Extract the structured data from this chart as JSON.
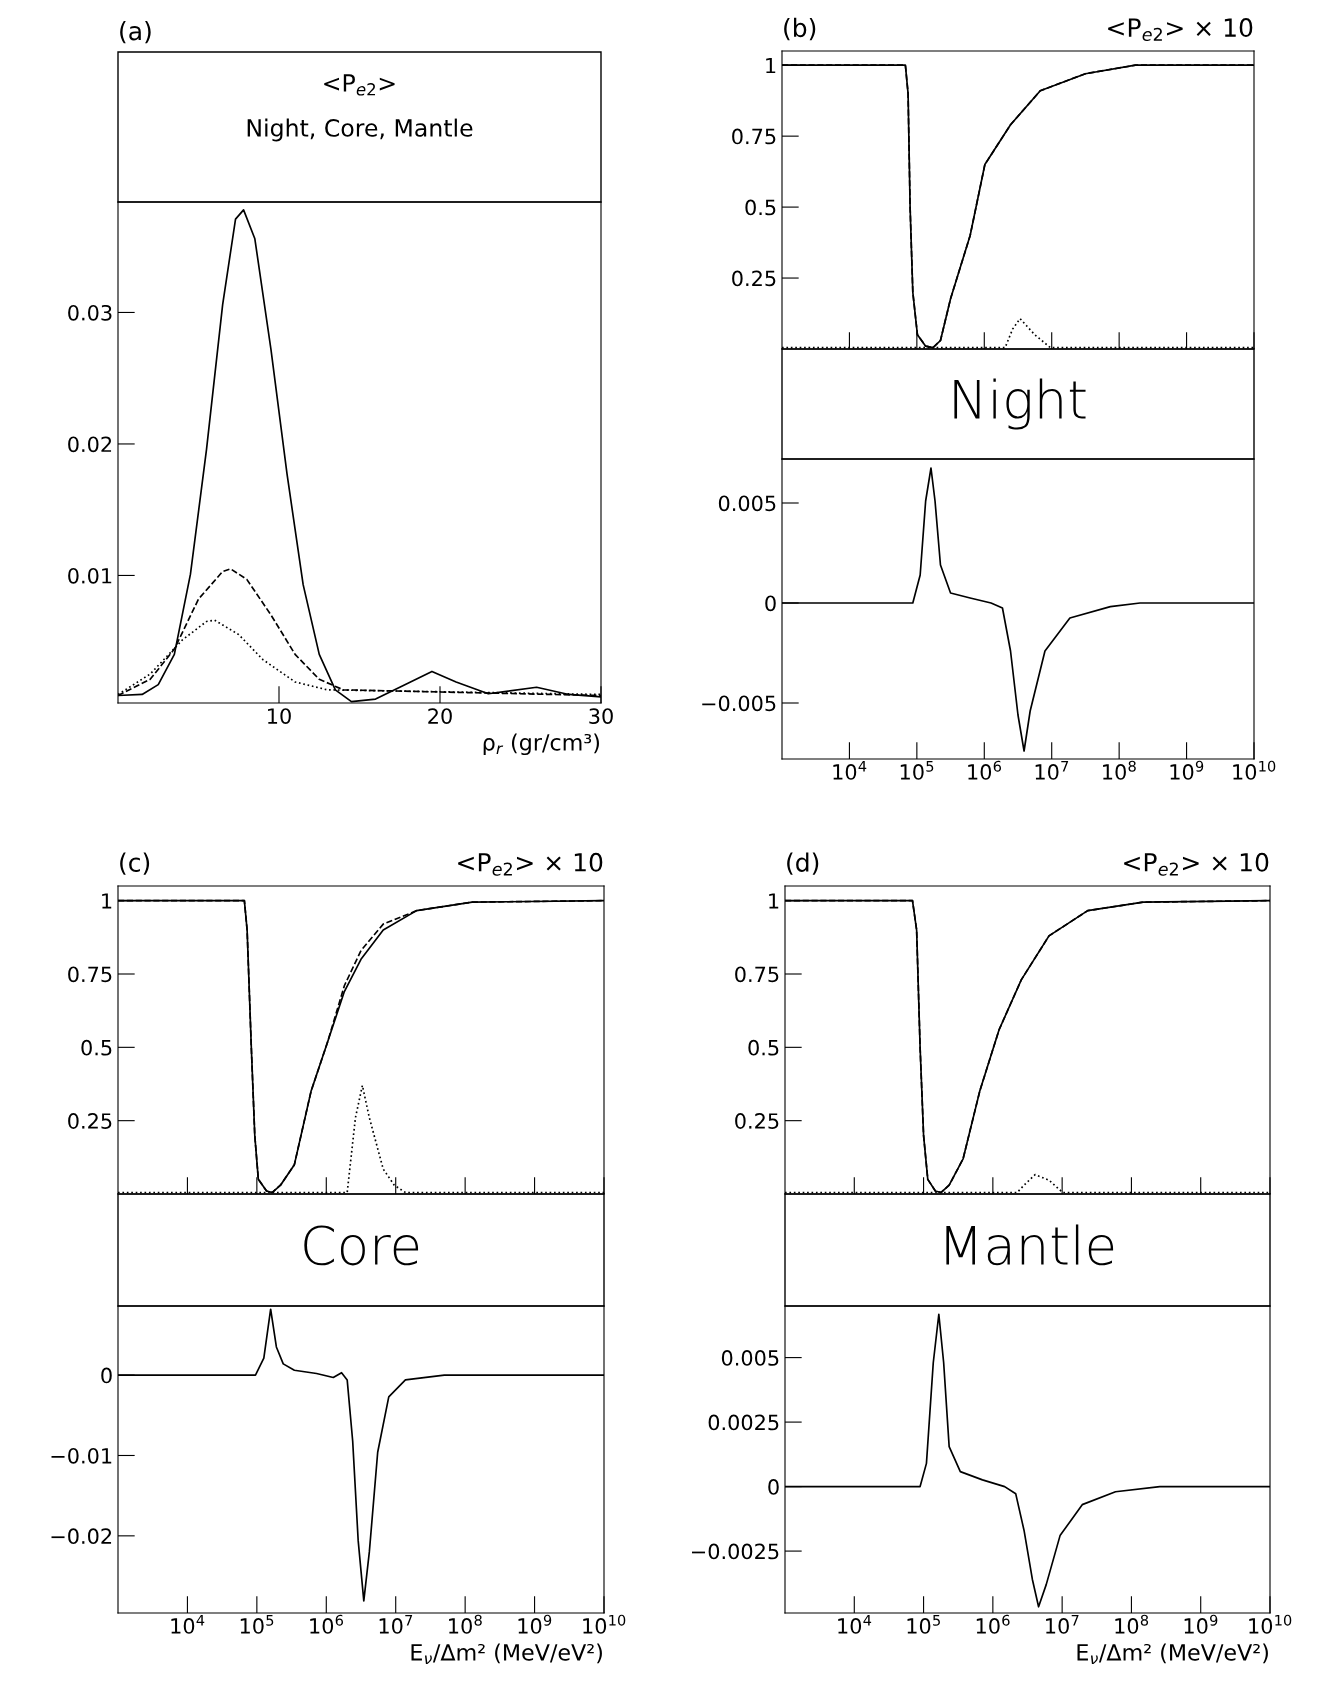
{
  "chart_data": [
    {
      "type": "line",
      "title": "(a)",
      "subtitle": "<P$_{e2}$>",
      "annotations": [
        "Night, Core, Mantle"
      ],
      "xlabel": "ρ$_{r}$ (gr/cm³)",
      "xlim": [
        0,
        30
      ],
      "xticks": [
        10,
        20,
        30
      ],
      "ylim": [
        0.0003,
        0.0384
      ],
      "yticks": [
        0.01,
        0.02,
        0.03
      ],
      "series": [
        {
          "color": "#000000",
          "line_style": "solid",
          "x": [
            0,
            1.5,
            2.5,
            3.5,
            4.5,
            5.5,
            6.5,
            7.3,
            7.8,
            8.5,
            9.5,
            10.5,
            11.5,
            12.5,
            13.5,
            14.5,
            16,
            17.5,
            19.5,
            21,
            23,
            26,
            28,
            30
          ],
          "values": [
            0.00087,
            0.00095,
            0.0017,
            0.004,
            0.0101,
            0.0196,
            0.0306,
            0.0371,
            0.0378,
            0.0356,
            0.0272,
            0.0177,
            0.0093,
            0.004,
            0.0013,
            0.0004,
            0.0006,
            0.0015,
            0.0027,
            0.0019,
            0.001,
            0.0015,
            0.00095,
            0.00076
          ]
        },
        {
          "color": "#000000",
          "line_style": "dashed",
          "x": [
            0,
            2,
            3.5,
            5,
            6.5,
            7,
            8,
            9.5,
            11,
            12.5,
            14,
            30
          ],
          "values": [
            0.00087,
            0.0021,
            0.0044,
            0.0082,
            0.0103,
            0.0105,
            0.0097,
            0.007,
            0.004,
            0.0021,
            0.0013,
            0.00087
          ]
        },
        {
          "color": "#000000",
          "line_style": "dotted",
          "x": [
            0,
            2,
            4,
            5.5,
            6,
            7.5,
            9,
            11,
            13,
            30
          ],
          "values": [
            0.00095,
            0.0025,
            0.0051,
            0.0065,
            0.0066,
            0.0055,
            0.0036,
            0.0019,
            0.0013,
            0.00095
          ]
        }
      ]
    },
    {
      "type": "line",
      "title": "(b)",
      "subtitle": "<P$_{e2}$> × 10",
      "log": "x",
      "tick_labels": "y",
      "xlim": [
        1000,
        10000000000
      ],
      "xticks": [
        {
          "value": 10000,
          "label": null
        },
        {
          "value": 100000,
          "label": null
        },
        {
          "value": 1000000,
          "label": null
        },
        {
          "value": 10000000,
          "label": null
        },
        {
          "value": 100000000,
          "label": null
        },
        {
          "value": 1000000000,
          "label": null
        },
        {
          "value": 10000000000,
          "label": null
        }
      ],
      "ylim": [
        0,
        1.05
      ],
      "yticks": [
        0.25,
        0.5,
        0.75,
        1
      ],
      "series": [
        {
          "color": "#000000",
          "line_style": "solid",
          "x": [
            1000,
            67600,
            74100,
            79400,
            87100,
            102000,
            135000,
            174000,
            224000,
            316000,
            617000,
            1020000,
            2450000,
            6760000,
            31600000,
            174000000,
            10000000000
          ],
          "values": [
            1,
            1,
            0.9,
            0.5,
            0.2,
            0.05,
            0.01,
            0.005,
            0.03,
            0.177,
            0.4,
            0.65,
            0.79,
            0.91,
            0.97,
            1.0,
            1
          ]
        },
        {
          "color": "#000000",
          "line_style": "dashed",
          "x": [
            1000,
            67600,
            74100,
            79400,
            87100,
            102000,
            135000,
            174000,
            224000,
            316000,
            617000,
            1020000,
            2450000,
            6760000,
            31600000,
            174000000,
            10000000000
          ],
          "values": [
            1,
            1,
            0.9,
            0.5,
            0.2,
            0.05,
            0.01,
            0.005,
            0.03,
            0.177,
            0.4,
            0.65,
            0.79,
            0.91,
            0.97,
            1.0,
            1
          ]
        },
        {
          "color": "#000000",
          "line_style": "dotted",
          "x": [
            1000,
            2040000,
            2630000,
            3390000,
            5620000,
            9550000,
            10000000000
          ],
          "values": [
            0.005,
            0.005,
            0.07,
            0.107,
            0.05,
            0.005,
            0.005
          ]
        }
      ]
    },
    {
      "type": "line",
      "title": "Night",
      "log": "x",
      "xlim": [
        1000,
        10000000000
      ],
      "xticks": [
        {
          "value": 10000,
          "label": "10$^{4}$"
        },
        {
          "value": 100000,
          "label": "10$^{5}$"
        },
        {
          "value": 1000000,
          "label": "10$^{6}$"
        },
        {
          "value": 10000000,
          "label": "10$^{7}$"
        },
        {
          "value": 100000000,
          "label": "10$^{8}$"
        },
        {
          "value": 1000000000,
          "label": "10$^{9}$"
        },
        {
          "value": 10000000000,
          "label": "10$^{10}$"
        }
      ],
      "ylim": [
        -0.0078,
        0.0072
      ],
      "yticks": [
        {
          "value": -0.005,
          "label": "−0.005"
        },
        0,
        0.005
      ],
      "series": [
        {
          "color": "#000000",
          "line_style": "solid",
          "x": [
            1000,
            87100,
            112000,
            135000,
            162000,
            186000,
            224000,
            316000,
            617000,
            1260000,
            1860000,
            2450000,
            3160000,
            3890000,
            4790000,
            7940000,
            18600000,
            74100000,
            204000000,
            10000000000
          ],
          "values": [
            0,
            0,
            0.0014,
            0.0051,
            0.00675,
            0.0051,
            0.0019,
            0.0005,
            0.00025,
            0,
            -0.00025,
            -0.0024,
            -0.0056,
            -0.0074,
            -0.0054,
            -0.0024,
            -0.00075,
            -0.00018,
            0,
            0
          ]
        }
      ]
    },
    {
      "type": "line",
      "title": "(c)",
      "subtitle": "<P$_{e2}$> × 10",
      "log": "x",
      "tick_labels": "y",
      "xlim": [
        1000,
        10000000000
      ],
      "xticks": [
        {
          "value": 10000,
          "label": null
        },
        {
          "value": 100000,
          "label": null
        },
        {
          "value": 1000000,
          "label": null
        },
        {
          "value": 10000000,
          "label": null
        },
        {
          "value": 100000000,
          "label": null
        },
        {
          "value": 1000000000,
          "label": null
        },
        {
          "value": 10000000000,
          "label": null
        }
      ],
      "ylim": [
        0,
        1.05
      ],
      "yticks": [
        0.25,
        0.5,
        0.75,
        1
      ],
      "series": [
        {
          "color": "#000000",
          "line_style": "solid",
          "x": [
            1000,
            66100,
            72400,
            83200,
            93300,
            105000,
            138000,
            166000,
            219000,
            347000,
            603000,
            1050000,
            1820000,
            3160000,
            6610000,
            20000000,
            126000000,
            10000000000
          ],
          "values": [
            1,
            1,
            0.9,
            0.5,
            0.2,
            0.05,
            0.01,
            0.005,
            0.03,
            0.1,
            0.35,
            0.52,
            0.69,
            0.8,
            0.9,
            0.966,
            0.995,
            1
          ]
        },
        {
          "color": "#000000",
          "line_style": "dashed",
          "x": [
            1000,
            66100,
            72400,
            83200,
            93300,
            105000,
            138000,
            166000,
            219000,
            347000,
            603000,
            1050000,
            1820000,
            3160000,
            6610000,
            20000000,
            126000000,
            10000000000
          ],
          "values": [
            1,
            1,
            0.9,
            0.5,
            0.2,
            0.05,
            0.01,
            0.005,
            0.03,
            0.1,
            0.35,
            0.52,
            0.71,
            0.83,
            0.92,
            0.966,
            0.995,
            1
          ]
        },
        {
          "color": "#000000",
          "line_style": "dotted",
          "x": [
            1000,
            2000000,
            2630000,
            3310000,
            4170000,
            6610000,
            9550000,
            13800000,
            10000000000
          ],
          "values": [
            0.005,
            0.005,
            0.26,
            0.37,
            0.26,
            0.085,
            0.03,
            0.005,
            0.005
          ]
        }
      ]
    },
    {
      "type": "line",
      "title": "Core",
      "xlabel": "E$_{ν}$/Δm² (MeV/eV²)",
      "log": "x",
      "xlim": [
        1000,
        10000000000
      ],
      "xticks": [
        {
          "value": 10000,
          "label": "10$^{4}$"
        },
        {
          "value": 100000,
          "label": "10$^{5}$"
        },
        {
          "value": 1000000,
          "label": "10$^{6}$"
        },
        {
          "value": 10000000,
          "label": "10$^{7}$"
        },
        {
          "value": 100000000,
          "label": "10$^{8}$"
        },
        {
          "value": 1000000000,
          "label": "10$^{9}$"
        },
        {
          "value": 10000000000,
          "label": "10$^{10}$"
        }
      ],
      "ylim": [
        -0.0296,
        0.0086
      ],
      "yticks": [
        {
          "value": -0.02,
          "label": "−0.02"
        },
        {
          "value": -0.01,
          "label": "−0.01"
        },
        0
      ],
      "series": [
        {
          "color": "#000000",
          "line_style": "solid",
          "x": [
            1000,
            95500,
            126000,
            158000,
            191000,
            240000,
            347000,
            724000,
            1260000,
            1660000,
            2000000,
            2400000,
            2880000,
            3470000,
            4170000,
            5500000,
            7940000,
            13800000,
            50100000,
            10000000000
          ],
          "values": [
            0,
            0,
            0.0021,
            0.0082,
            0.0035,
            0.0014,
            0.0006,
            0.0002,
            -0.0003,
            0.0003,
            -0.0006,
            -0.0082,
            -0.0206,
            -0.0281,
            -0.022,
            -0.0096,
            -0.0027,
            -0.0006,
            0,
            0
          ]
        }
      ]
    },
    {
      "type": "line",
      "title": "(d)",
      "subtitle": "<P$_{e2}$> × 10",
      "log": "x",
      "tick_labels": "y",
      "xlim": [
        1000,
        10000000000
      ],
      "xticks": [
        {
          "value": 10000,
          "label": null
        },
        {
          "value": 100000,
          "label": null
        },
        {
          "value": 1000000,
          "label": null
        },
        {
          "value": 10000000,
          "label": null
        },
        {
          "value": 100000000,
          "label": null
        },
        {
          "value": 1000000000,
          "label": null
        },
        {
          "value": 10000000000,
          "label": null
        }
      ],
      "ylim": [
        0,
        1.05
      ],
      "yticks": [
        0.25,
        0.5,
        0.75,
        1
      ],
      "series": [
        {
          "color": "#000000",
          "line_style": "solid",
          "x": [
            1000,
            69200,
            79400,
            89100,
            100000,
            115000,
            148000,
            178000,
            234000,
            372000,
            646000,
            1230000,
            2570000,
            6460000,
            23400000,
            148000000,
            10000000000
          ],
          "values": [
            1,
            1,
            0.9,
            0.5,
            0.2,
            0.05,
            0.01,
            0.005,
            0.03,
            0.12,
            0.35,
            0.56,
            0.73,
            0.88,
            0.966,
            0.995,
            1
          ]
        },
        {
          "color": "#000000",
          "line_style": "dashed",
          "x": [
            1000,
            69200,
            79400,
            89100,
            100000,
            115000,
            148000,
            178000,
            234000,
            372000,
            646000,
            1230000,
            2570000,
            6460000,
            23400000,
            148000000,
            10000000000
          ],
          "values": [
            1,
            1,
            0.9,
            0.5,
            0.2,
            0.05,
            0.01,
            0.005,
            0.03,
            0.12,
            0.35,
            0.56,
            0.73,
            0.88,
            0.966,
            0.995,
            1
          ]
        },
        {
          "color": "#000000",
          "line_style": "dotted",
          "x": [
            1000,
            2240000,
            2820000,
            4070000,
            6460000,
            10200000,
            10000000000
          ],
          "values": [
            0.005,
            0.005,
            0.03,
            0.066,
            0.047,
            0.005,
            0.005
          ]
        }
      ]
    },
    {
      "type": "line",
      "title": "Mantle",
      "xlabel": "E$_{ν}$/Δm² (MeV/eV²)",
      "log": "x",
      "xlim": [
        1000,
        10000000000
      ],
      "xticks": [
        {
          "value": 10000,
          "label": "10$^{4}$"
        },
        {
          "value": 100000,
          "label": "10$^{5}$"
        },
        {
          "value": 1000000,
          "label": "10$^{6}$"
        },
        {
          "value": 10000000,
          "label": "10$^{7}$"
        },
        {
          "value": 100000000,
          "label": "10$^{8}$"
        },
        {
          "value": 1000000000,
          "label": "10$^{9}$"
        },
        {
          "value": 10000000000,
          "label": "10$^{10}$"
        }
      ],
      "ylim": [
        -0.0049,
        0.007
      ],
      "yticks": [
        {
          "value": -0.0025,
          "label": "−0.0025"
        },
        0,
        0.0025,
        0.005
      ],
      "series": [
        {
          "color": "#000000",
          "line_style": "solid",
          "x": [
            1000,
            89100,
            110000,
            138000,
            166000,
            195000,
            234000,
            339000,
            708000,
            1480000,
            2140000,
            2820000,
            3720000,
            4570000,
            5890000,
            9330000,
            19500000,
            58900000,
            257000000,
            10000000000
          ],
          "values": [
            0,
            0,
            0.0009,
            0.0048,
            0.00668,
            0.0048,
            0.00155,
            0.00058,
            0.00026,
            0,
            -0.00028,
            -0.0017,
            -0.0036,
            -0.00466,
            -0.0038,
            -0.0019,
            -0.0007,
            -0.0002,
            0,
            0
          ]
        }
      ]
    }
  ]
}
